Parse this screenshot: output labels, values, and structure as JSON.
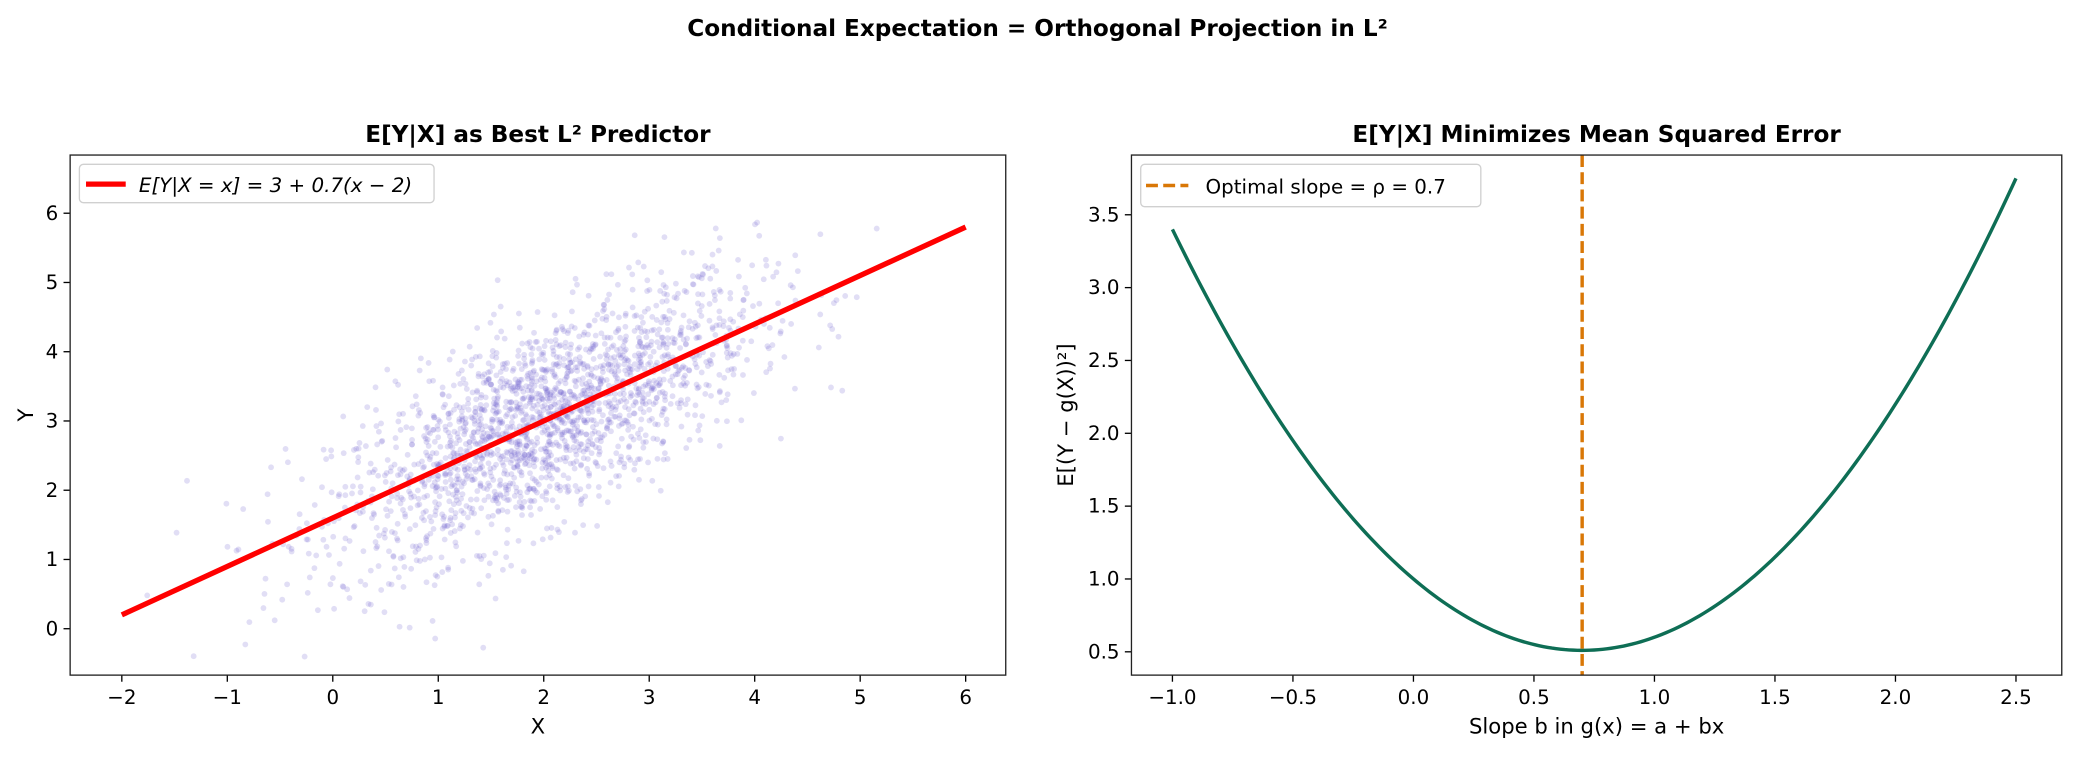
{
  "suptitle": "Conditional Expectation = Orthogonal Projection in L²",
  "chart_data": [
    {
      "type": "scatter",
      "title": "E[Y|X] as Best L² Predictor",
      "xlabel": "X",
      "ylabel": "Y",
      "xlim": [
        -2.49,
        6.38
      ],
      "ylim": [
        -0.67,
        6.84
      ],
      "xticks": [
        -2,
        -1,
        0,
        1,
        2,
        3,
        4,
        5,
        6
      ],
      "yticks": [
        0,
        1,
        2,
        3,
        4,
        5,
        6
      ],
      "grid": false,
      "legend": {
        "position": "top-left",
        "entries": [
          "E[Y|X = x] = 3 + 0.7(x − 2)"
        ]
      },
      "scatter": {
        "n": 2000,
        "x_mean": 2,
        "x_std": 1,
        "y_mean": 3,
        "y_std": 1,
        "rho": 0.7,
        "color": "#6a5acd",
        "alpha": 0.2
      },
      "line": {
        "x": [
          -2,
          6
        ],
        "y": [
          0.2,
          5.8
        ],
        "color": "#ff0000"
      }
    },
    {
      "type": "line",
      "title": "E[Y|X] Minimizes Mean Squared Error",
      "xlabel": "Slope b in g(x) = a + bx",
      "ylabel": "E[(Y − g(X))²]",
      "xlim": [
        -1.17,
        2.69
      ],
      "ylim": [
        0.34,
        3.91
      ],
      "xticks": [
        "-1.0",
        "-0.5",
        "0.0",
        "0.5",
        "1.0",
        "1.5",
        "2.0",
        "2.5"
      ],
      "yticks": [
        "0.5",
        "1.0",
        "1.5",
        "2.0",
        "2.5",
        "3.0",
        "3.5"
      ],
      "grid": false,
      "legend": {
        "position": "top-left",
        "entries": [
          "Optimal slope = ρ = 0.7"
        ]
      },
      "curve": {
        "x_range": [
          -1.0,
          2.5
        ],
        "formula": "1 - 2*0.7*b + b^2",
        "min_value": 0.51,
        "color": "#0e6e55"
      },
      "vline": {
        "x": 0.7,
        "color": "#d97706",
        "style": "dashed"
      }
    }
  ]
}
